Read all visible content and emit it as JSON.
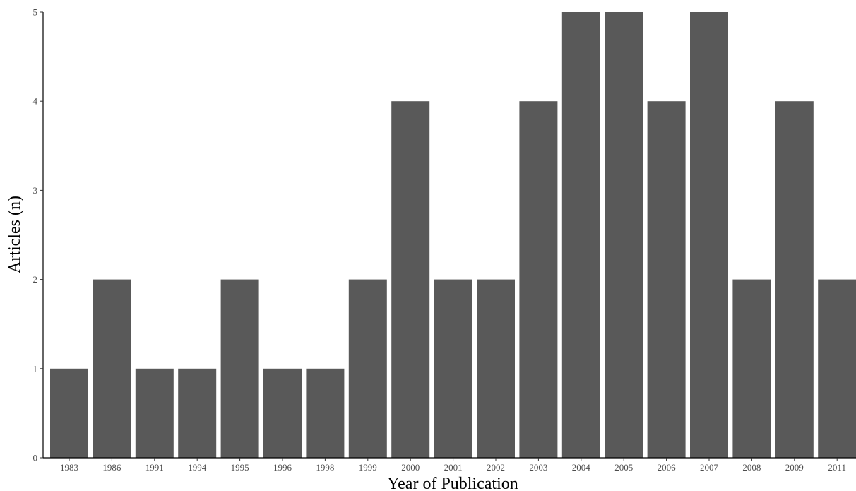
{
  "chart_data": {
    "type": "bar",
    "title": "",
    "xlabel": "Year of Publication",
    "ylabel": "Articles (n)",
    "categories": [
      "1983",
      "1986",
      "1991",
      "1994",
      "1995",
      "1996",
      "1998",
      "1999",
      "2000",
      "2001",
      "2002",
      "2003",
      "2004",
      "2005",
      "2006",
      "2007",
      "2008",
      "2009",
      "2011"
    ],
    "values": [
      1,
      2,
      1,
      1,
      2,
      1,
      1,
      2,
      4,
      2,
      2,
      4,
      5,
      5,
      4,
      5,
      2,
      4,
      2
    ],
    "ylim": [
      0,
      5
    ],
    "yticks": [
      0,
      1,
      2,
      3,
      4,
      5
    ],
    "grid": false,
    "bar_color": "#595959"
  }
}
